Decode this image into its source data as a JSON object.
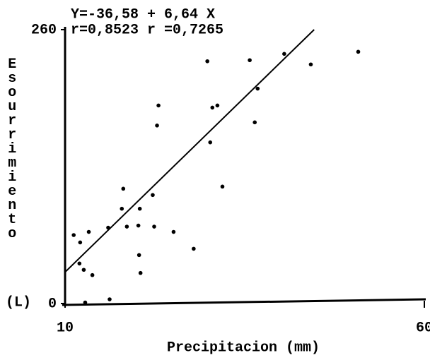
{
  "chart_data": {
    "type": "scatter",
    "annotations": [
      "Y=-36,58 + 6,64 X",
      "r=0,8523 r =0,7265"
    ],
    "fit": {
      "intercept": -36.58,
      "slope": 6.64
    },
    "x_label": "Precipitacion (mm)",
    "y_label": "Esourrimiento",
    "y_unit": "(L)",
    "xlim": [
      10,
      60
    ],
    "xticks": [
      10,
      60
    ],
    "ylim": [
      0,
      260
    ],
    "yticks": [
      0,
      260
    ],
    "color": "#000000",
    "x": [
      11.2,
      12.1,
      13.3,
      12.0,
      12.6,
      13.8,
      12.8,
      16.2,
      16.0,
      18.1,
      17.9,
      18.6,
      20.4,
      20.2,
      20.3,
      20.5,
      22.2,
      22.4,
      22.8,
      23.0,
      25.1,
      27.9,
      29.8,
      30.2,
      30.5,
      31.2,
      31.9,
      35.7,
      36.4,
      36.8,
      40.5,
      44.2,
      50.8
    ],
    "values": [
      65,
      58,
      68,
      38,
      32,
      27,
      1,
      4,
      72,
      109,
      90,
      73,
      90,
      74,
      46,
      29,
      103,
      73,
      169,
      188,
      68,
      52,
      230,
      153,
      186,
      188,
      111,
      231,
      172,
      204,
      237,
      227,
      239
    ]
  }
}
